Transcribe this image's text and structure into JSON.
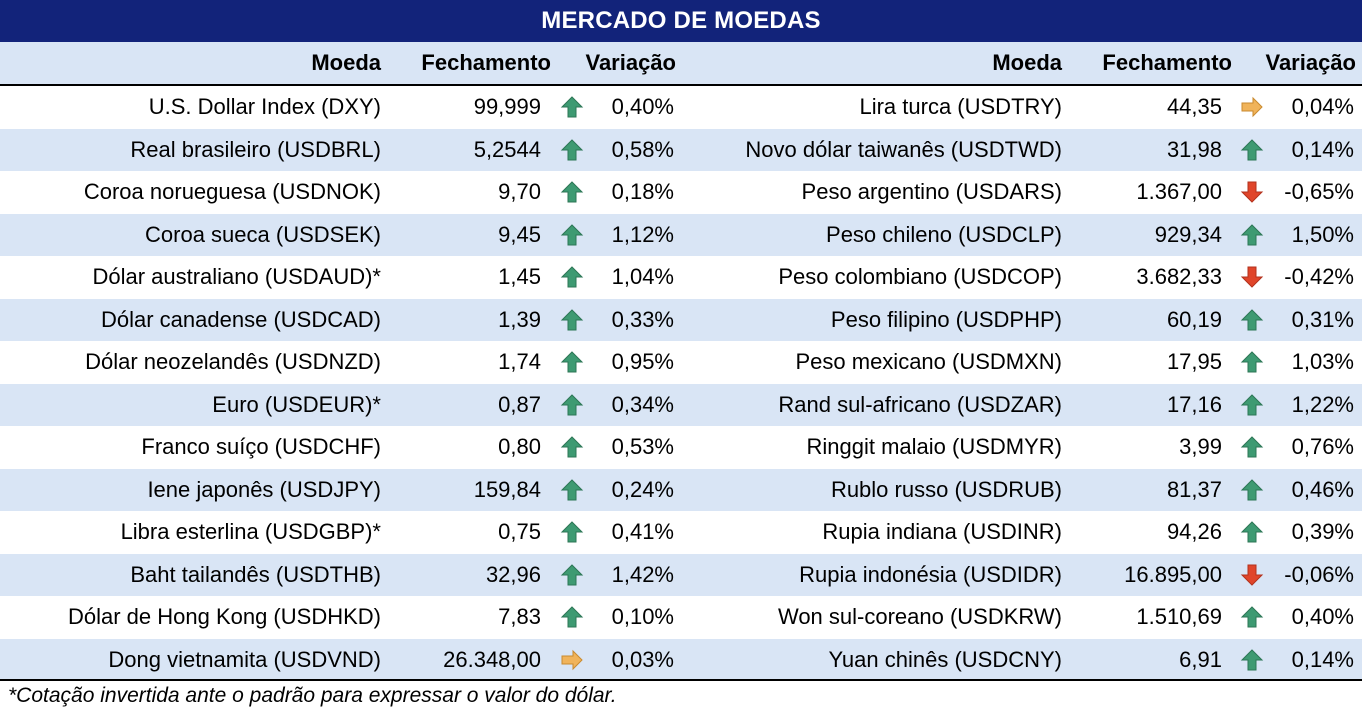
{
  "title": "MERCADO DE MOEDAS",
  "headers": {
    "left": {
      "currency": "Moeda",
      "close": "Fechamento",
      "change": "Variação"
    },
    "right": {
      "currency": "Moeda",
      "close": "Fechamento",
      "change": "Variação"
    }
  },
  "colors": {
    "title_bg": "#12237a",
    "band": "#d9e5f5",
    "up": "#3e9a72",
    "down": "#e0452a",
    "flat": "#f0b35a"
  },
  "left_rows": [
    {
      "name": "U.S. Dollar Index (DXY)",
      "close": "99,999",
      "trend": "up",
      "change": "0,40%"
    },
    {
      "name": "Real brasileiro (USDBRL)",
      "close": "5,2544",
      "trend": "up",
      "change": "0,58%"
    },
    {
      "name": "Coroa norueguesa (USDNOK)",
      "close": "9,70",
      "trend": "up",
      "change": "0,18%"
    },
    {
      "name": "Coroa sueca (USDSEK)",
      "close": "9,45",
      "trend": "up",
      "change": "1,12%"
    },
    {
      "name": "Dólar australiano (USDAUD)*",
      "close": "1,45",
      "trend": "up",
      "change": "1,04%"
    },
    {
      "name": "Dólar canadense (USDCAD)",
      "close": "1,39",
      "trend": "up",
      "change": "0,33%"
    },
    {
      "name": "Dólar neozelandês (USDNZD)",
      "close": "1,74",
      "trend": "up",
      "change": "0,95%"
    },
    {
      "name": "Euro (USDEUR)*",
      "close": "0,87",
      "trend": "up",
      "change": "0,34%"
    },
    {
      "name": "Franco suíço (USDCHF)",
      "close": "0,80",
      "trend": "up",
      "change": "0,53%"
    },
    {
      "name": "Iene japonês (USDJPY)",
      "close": "159,84",
      "trend": "up",
      "change": "0,24%"
    },
    {
      "name": "Libra esterlina (USDGBP)*",
      "close": "0,75",
      "trend": "up",
      "change": "0,41%"
    },
    {
      "name": "Baht tailandês (USDTHB)",
      "close": "32,96",
      "trend": "up",
      "change": "1,42%"
    },
    {
      "name": "Dólar de Hong Kong (USDHKD)",
      "close": "7,83",
      "trend": "up",
      "change": "0,10%"
    },
    {
      "name": "Dong vietnamita (USDVND)",
      "close": "26.348,00",
      "trend": "flat",
      "change": "0,03%"
    }
  ],
  "right_rows": [
    {
      "name": "Lira turca (USDTRY)",
      "close": "44,35",
      "trend": "flat",
      "change": "0,04%"
    },
    {
      "name": "Novo dólar taiwanês (USDTWD)",
      "close": "31,98",
      "trend": "up",
      "change": "0,14%"
    },
    {
      "name": "Peso argentino (USDARS)",
      "close": "1.367,00",
      "trend": "down",
      "change": "-0,65%"
    },
    {
      "name": "Peso chileno (USDCLP)",
      "close": "929,34",
      "trend": "up",
      "change": "1,50%"
    },
    {
      "name": "Peso colombiano (USDCOP)",
      "close": "3.682,33",
      "trend": "down",
      "change": "-0,42%"
    },
    {
      "name": "Peso filipino (USDPHP)",
      "close": "60,19",
      "trend": "up",
      "change": "0,31%"
    },
    {
      "name": "Peso mexicano (USDMXN)",
      "close": "17,95",
      "trend": "up",
      "change": "1,03%"
    },
    {
      "name": "Rand sul-africano (USDZAR)",
      "close": "17,16",
      "trend": "up",
      "change": "1,22%"
    },
    {
      "name": "Ringgit malaio (USDMYR)",
      "close": "3,99",
      "trend": "up",
      "change": "0,76%"
    },
    {
      "name": "Rublo russo (USDRUB)",
      "close": "81,37",
      "trend": "up",
      "change": "0,46%"
    },
    {
      "name": "Rupia indiana (USDINR)",
      "close": "94,26",
      "trend": "up",
      "change": "0,39%"
    },
    {
      "name": "Rupia indonésia (USDIDR)",
      "close": "16.895,00",
      "trend": "down",
      "change": "-0,06%"
    },
    {
      "name": "Won sul-coreano (USDKRW)",
      "close": "1.510,69",
      "trend": "up",
      "change": "0,40%"
    },
    {
      "name": "Yuan chinês (USDCNY)",
      "close": "6,91",
      "trend": "up",
      "change": "0,14%"
    }
  ],
  "footnote": "*Cotação invertida ante o padrão para expressar o valor do dólar."
}
